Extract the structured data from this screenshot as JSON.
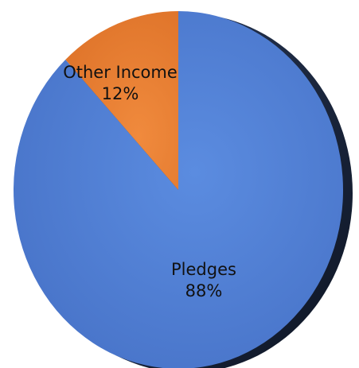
{
  "chart_data": {
    "type": "pie",
    "categories": [
      "Pledges",
      "Other Income"
    ],
    "values": [
      88,
      12
    ],
    "value_labels": [
      "88%",
      "12%"
    ],
    "start": "12 o'clock",
    "direction": "counter-clockwise for Other Income, remainder Pledges",
    "colors": {
      "Pledges": "#4F7ED0",
      "Other Income": "#E87E35"
    },
    "style": "3D tilted pie with dark rim on right side",
    "legend": "none"
  }
}
